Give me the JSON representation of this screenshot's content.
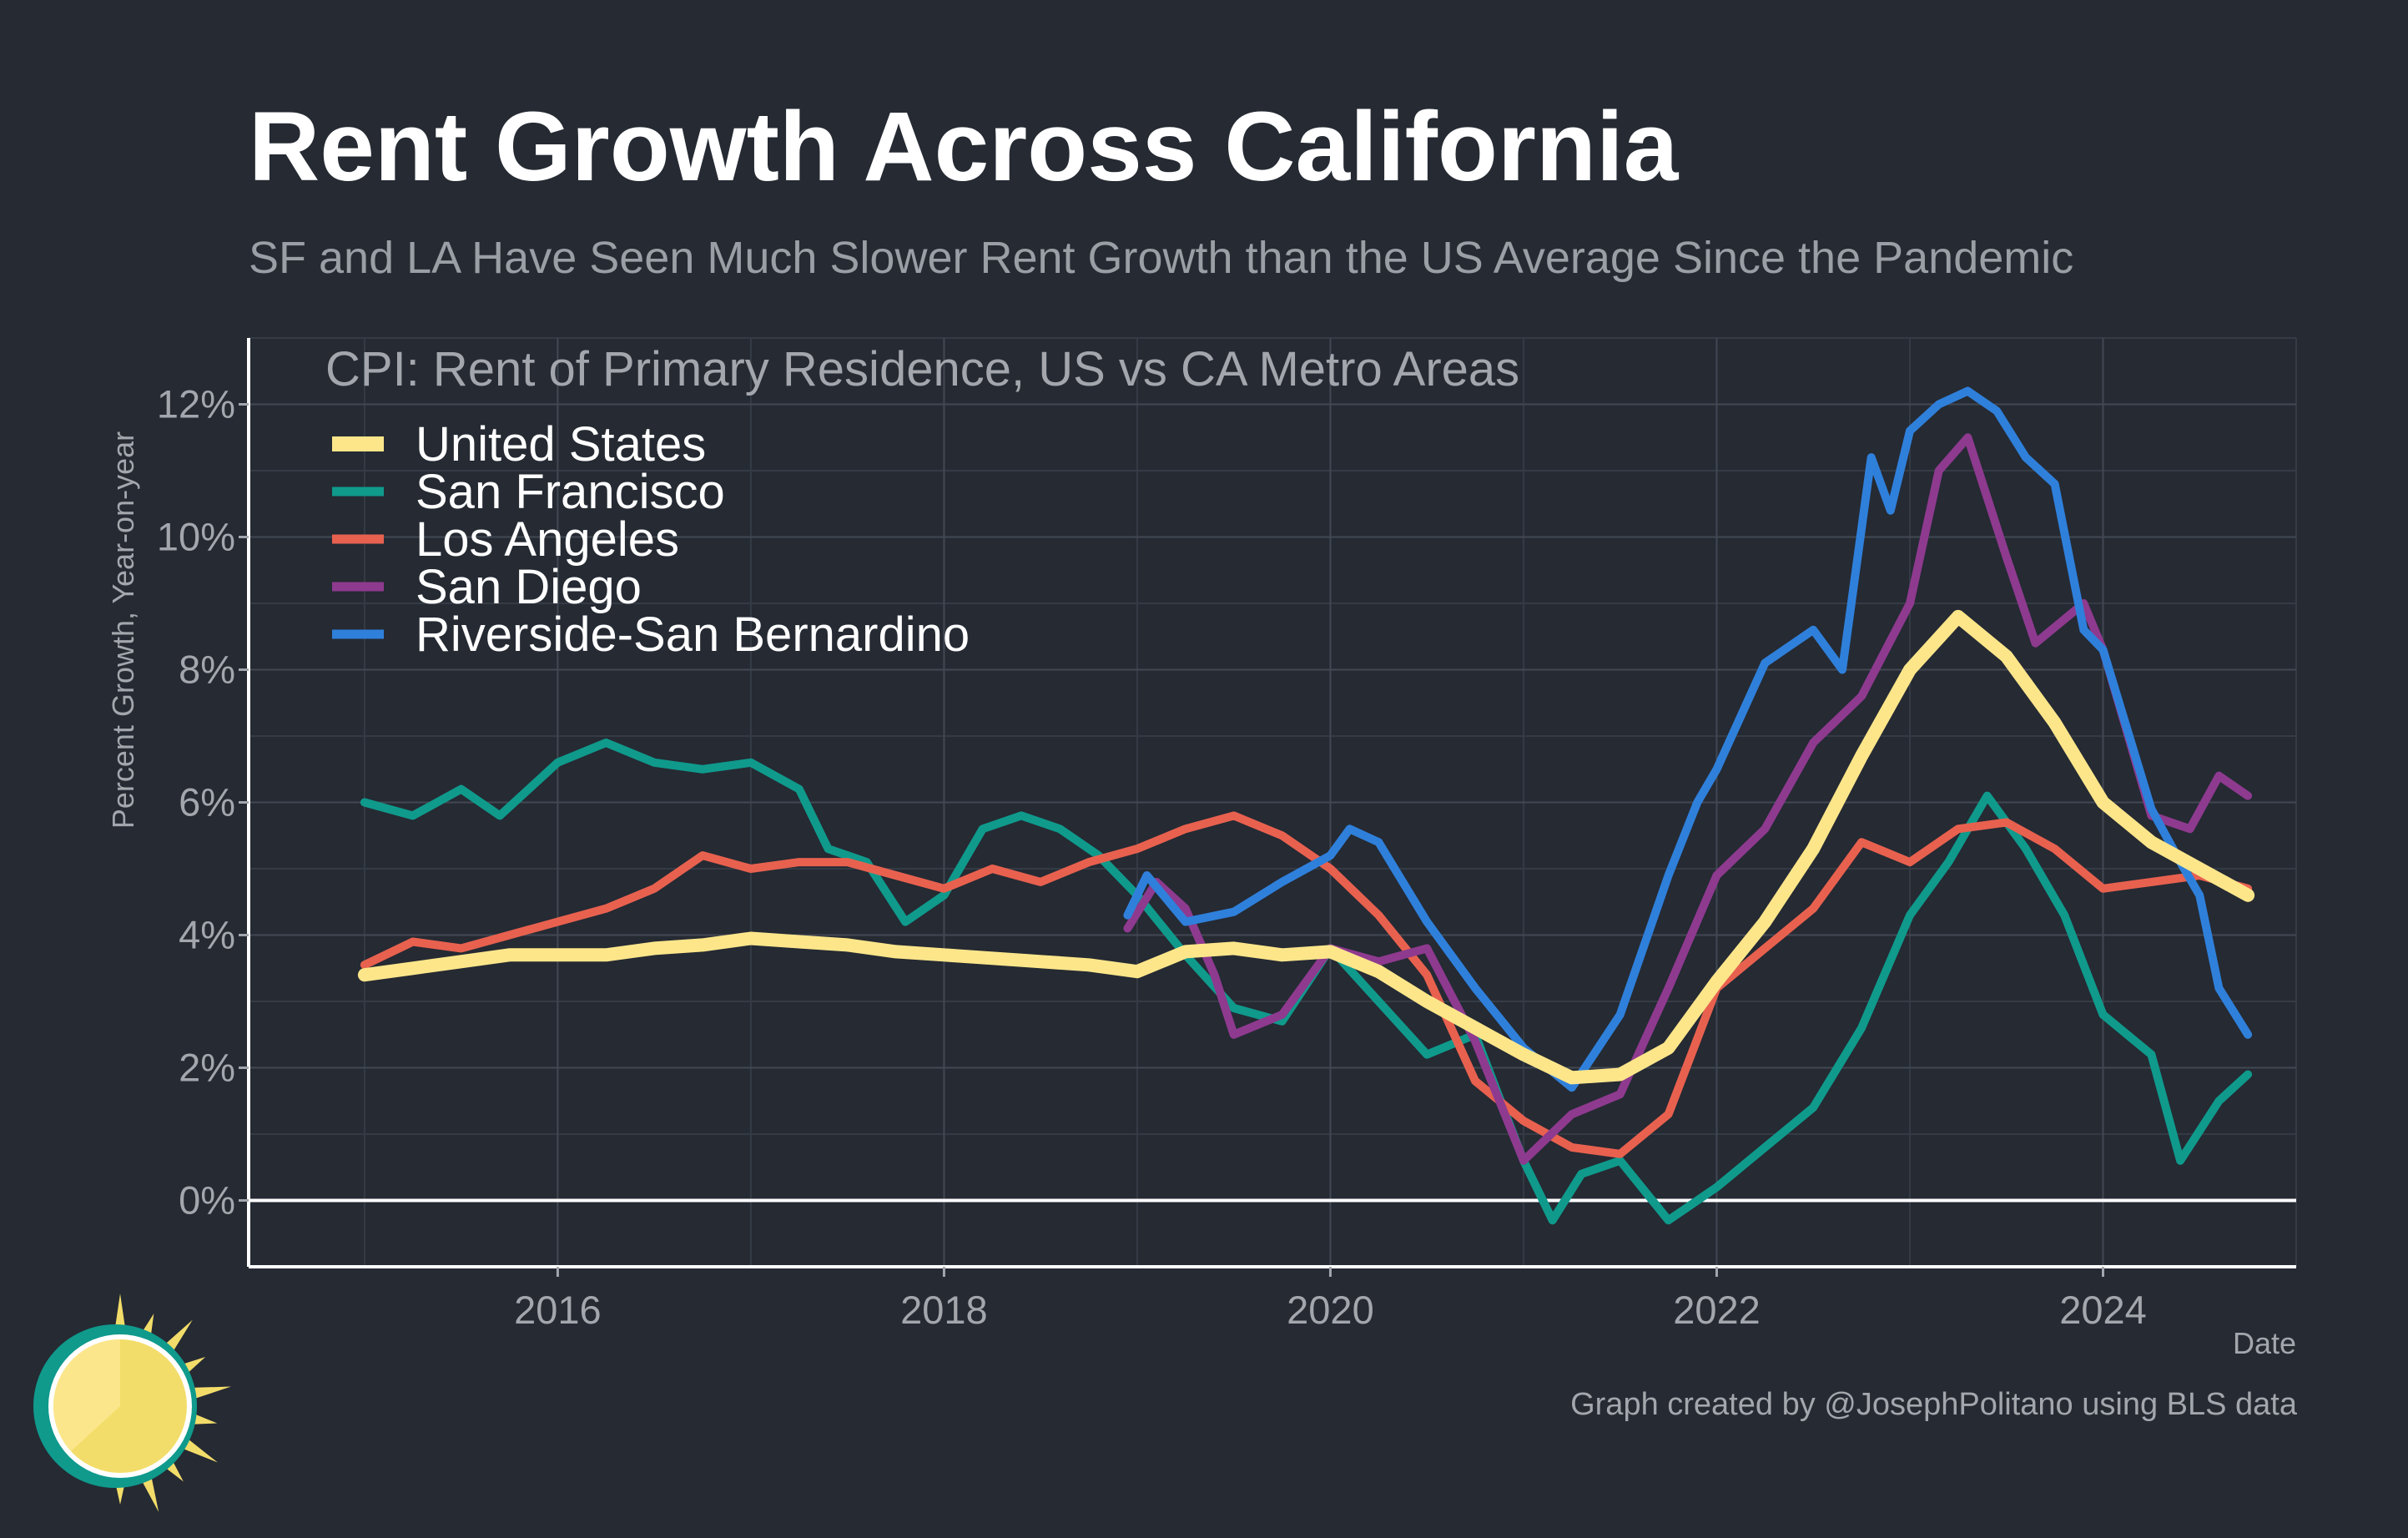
{
  "title": "Rent Growth Across California",
  "subtitle": "SF and LA Have Seen Much Slower Rent Growth than the US Average Since the Pandemic",
  "caption": "Graph created by @JosephPolitano using BLS data",
  "chart_data": {
    "type": "line",
    "title": "CPI: Rent of Primary Residence, US vs CA Metro Areas",
    "xlabel": "Date",
    "ylabel": "Percent Growth, Year-on-year",
    "xlim": [
      2014.4,
      2025.0
    ],
    "ylim": [
      -1.0,
      13.0
    ],
    "x_ticks": [
      2016,
      2018,
      2020,
      2022,
      2024
    ],
    "x_tick_labels": [
      "2016",
      "2018",
      "2020",
      "2022",
      "2024"
    ],
    "y_ticks": [
      0,
      2,
      4,
      6,
      8,
      10,
      12
    ],
    "y_tick_labels": [
      "0%",
      "2%",
      "4%",
      "6%",
      "8%",
      "10%",
      "12%"
    ],
    "grid": true,
    "legend_position": "top-left",
    "series": [
      {
        "name": "United States",
        "color": "#fde68a",
        "points": [
          [
            2015.0,
            3.4
          ],
          [
            2015.25,
            3.5
          ],
          [
            2015.5,
            3.6
          ],
          [
            2015.75,
            3.7
          ],
          [
            2016.0,
            3.7
          ],
          [
            2016.25,
            3.7
          ],
          [
            2016.5,
            3.8
          ],
          [
            2016.75,
            3.85
          ],
          [
            2017.0,
            3.95
          ],
          [
            2017.25,
            3.9
          ],
          [
            2017.5,
            3.85
          ],
          [
            2017.75,
            3.75
          ],
          [
            2018.0,
            3.7
          ],
          [
            2018.25,
            3.65
          ],
          [
            2018.5,
            3.6
          ],
          [
            2018.75,
            3.55
          ],
          [
            2019.0,
            3.45
          ],
          [
            2019.25,
            3.75
          ],
          [
            2019.5,
            3.8
          ],
          [
            2019.75,
            3.7
          ],
          [
            2020.0,
            3.75
          ],
          [
            2020.25,
            3.45
          ],
          [
            2020.5,
            3.0
          ],
          [
            2020.75,
            2.6
          ],
          [
            2021.0,
            2.2
          ],
          [
            2021.25,
            1.85
          ],
          [
            2021.5,
            1.9
          ],
          [
            2021.75,
            2.3
          ],
          [
            2022.0,
            3.3
          ],
          [
            2022.25,
            4.2
          ],
          [
            2022.5,
            5.3
          ],
          [
            2022.75,
            6.7
          ],
          [
            2023.0,
            8.0
          ],
          [
            2023.25,
            8.8
          ],
          [
            2023.5,
            8.2
          ],
          [
            2023.75,
            7.2
          ],
          [
            2024.0,
            6.0
          ],
          [
            2024.25,
            5.4
          ],
          [
            2024.5,
            5.0
          ],
          [
            2024.75,
            4.6
          ]
        ]
      },
      {
        "name": "San Francisco",
        "color": "#0f9a8c",
        "points": [
          [
            2015.0,
            6.0
          ],
          [
            2015.25,
            5.8
          ],
          [
            2015.5,
            6.2
          ],
          [
            2015.7,
            5.8
          ],
          [
            2016.0,
            6.6
          ],
          [
            2016.25,
            6.9
          ],
          [
            2016.5,
            6.6
          ],
          [
            2016.75,
            6.5
          ],
          [
            2017.0,
            6.6
          ],
          [
            2017.25,
            6.2
          ],
          [
            2017.4,
            5.3
          ],
          [
            2017.6,
            5.1
          ],
          [
            2017.8,
            4.2
          ],
          [
            2018.0,
            4.6
          ],
          [
            2018.2,
            5.6
          ],
          [
            2018.4,
            5.8
          ],
          [
            2018.6,
            5.6
          ],
          [
            2018.8,
            5.2
          ],
          [
            2019.0,
            4.6
          ],
          [
            2019.25,
            3.7
          ],
          [
            2019.5,
            2.9
          ],
          [
            2019.75,
            2.7
          ],
          [
            2020.0,
            3.8
          ],
          [
            2020.25,
            3.0
          ],
          [
            2020.5,
            2.2
          ],
          [
            2020.75,
            2.5
          ],
          [
            2021.0,
            0.6
          ],
          [
            2021.15,
            -0.3
          ],
          [
            2021.3,
            0.4
          ],
          [
            2021.5,
            0.6
          ],
          [
            2021.75,
            -0.3
          ],
          [
            2022.0,
            0.2
          ],
          [
            2022.25,
            0.8
          ],
          [
            2022.5,
            1.4
          ],
          [
            2022.75,
            2.6
          ],
          [
            2023.0,
            4.3
          ],
          [
            2023.2,
            5.1
          ],
          [
            2023.4,
            6.1
          ],
          [
            2023.6,
            5.3
          ],
          [
            2023.8,
            4.3
          ],
          [
            2024.0,
            2.8
          ],
          [
            2024.25,
            2.2
          ],
          [
            2024.4,
            0.6
          ],
          [
            2024.6,
            1.5
          ],
          [
            2024.75,
            1.9
          ]
        ]
      },
      {
        "name": "Los Angeles",
        "color": "#e8614f",
        "points": [
          [
            2015.0,
            3.55
          ],
          [
            2015.25,
            3.9
          ],
          [
            2015.5,
            3.8
          ],
          [
            2015.75,
            4.0
          ],
          [
            2016.0,
            4.2
          ],
          [
            2016.25,
            4.4
          ],
          [
            2016.5,
            4.7
          ],
          [
            2016.75,
            5.2
          ],
          [
            2017.0,
            5.0
          ],
          [
            2017.25,
            5.1
          ],
          [
            2017.5,
            5.1
          ],
          [
            2017.75,
            4.9
          ],
          [
            2018.0,
            4.7
          ],
          [
            2018.25,
            5.0
          ],
          [
            2018.5,
            4.8
          ],
          [
            2018.75,
            5.1
          ],
          [
            2019.0,
            5.3
          ],
          [
            2019.25,
            5.6
          ],
          [
            2019.5,
            5.8
          ],
          [
            2019.75,
            5.5
          ],
          [
            2020.0,
            5.0
          ],
          [
            2020.25,
            4.3
          ],
          [
            2020.5,
            3.4
          ],
          [
            2020.75,
            1.8
          ],
          [
            2021.0,
            1.2
          ],
          [
            2021.25,
            0.8
          ],
          [
            2021.5,
            0.7
          ],
          [
            2021.75,
            1.3
          ],
          [
            2022.0,
            3.2
          ],
          [
            2022.25,
            3.8
          ],
          [
            2022.5,
            4.4
          ],
          [
            2022.75,
            5.4
          ],
          [
            2023.0,
            5.1
          ],
          [
            2023.25,
            5.6
          ],
          [
            2023.5,
            5.7
          ],
          [
            2023.75,
            5.3
          ],
          [
            2024.0,
            4.7
          ],
          [
            2024.25,
            4.8
          ],
          [
            2024.5,
            4.9
          ],
          [
            2024.75,
            4.7
          ]
        ]
      },
      {
        "name": "San Diego",
        "color": "#8e3a8f",
        "points": [
          [
            2018.95,
            4.1
          ],
          [
            2019.1,
            4.8
          ],
          [
            2019.25,
            4.4
          ],
          [
            2019.4,
            3.4
          ],
          [
            2019.5,
            2.5
          ],
          [
            2019.75,
            2.8
          ],
          [
            2020.0,
            3.8
          ],
          [
            2020.25,
            3.6
          ],
          [
            2020.5,
            3.8
          ],
          [
            2020.75,
            2.4
          ],
          [
            2021.0,
            0.6
          ],
          [
            2021.25,
            1.3
          ],
          [
            2021.5,
            1.6
          ],
          [
            2021.75,
            3.2
          ],
          [
            2022.0,
            4.9
          ],
          [
            2022.25,
            5.6
          ],
          [
            2022.5,
            6.9
          ],
          [
            2022.75,
            7.6
          ],
          [
            2023.0,
            9.0
          ],
          [
            2023.15,
            11.0
          ],
          [
            2023.3,
            11.5
          ],
          [
            2023.5,
            9.7
          ],
          [
            2023.65,
            8.4
          ],
          [
            2023.9,
            9.0
          ],
          [
            2024.0,
            8.3
          ],
          [
            2024.25,
            5.8
          ],
          [
            2024.45,
            5.6
          ],
          [
            2024.6,
            6.4
          ],
          [
            2024.75,
            6.1
          ]
        ]
      },
      {
        "name": "Riverside-San Bernardino",
        "color": "#2f80db",
        "points": [
          [
            2018.95,
            4.3
          ],
          [
            2019.05,
            4.9
          ],
          [
            2019.25,
            4.2
          ],
          [
            2019.5,
            4.35
          ],
          [
            2019.75,
            4.8
          ],
          [
            2020.0,
            5.2
          ],
          [
            2020.1,
            5.6
          ],
          [
            2020.25,
            5.4
          ],
          [
            2020.5,
            4.2
          ],
          [
            2020.75,
            3.2
          ],
          [
            2021.0,
            2.3
          ],
          [
            2021.25,
            1.7
          ],
          [
            2021.5,
            2.8
          ],
          [
            2021.75,
            4.9
          ],
          [
            2021.9,
            6.0
          ],
          [
            2022.0,
            6.5
          ],
          [
            2022.25,
            8.1
          ],
          [
            2022.5,
            8.6
          ],
          [
            2022.65,
            8.0
          ],
          [
            2022.8,
            11.2
          ],
          [
            2022.9,
            10.4
          ],
          [
            2023.0,
            11.6
          ],
          [
            2023.15,
            12.0
          ],
          [
            2023.3,
            12.2
          ],
          [
            2023.45,
            11.9
          ],
          [
            2023.6,
            11.2
          ],
          [
            2023.75,
            10.8
          ],
          [
            2023.9,
            8.6
          ],
          [
            2024.0,
            8.3
          ],
          [
            2024.25,
            5.9
          ],
          [
            2024.4,
            5.1
          ],
          [
            2024.5,
            4.6
          ],
          [
            2024.6,
            3.2
          ],
          [
            2024.75,
            2.5
          ]
        ]
      }
    ]
  },
  "logo": {
    "name": "sun-logo",
    "colors": [
      "#f3dd6a",
      "#fbe68b",
      "#0f9a8c"
    ]
  }
}
